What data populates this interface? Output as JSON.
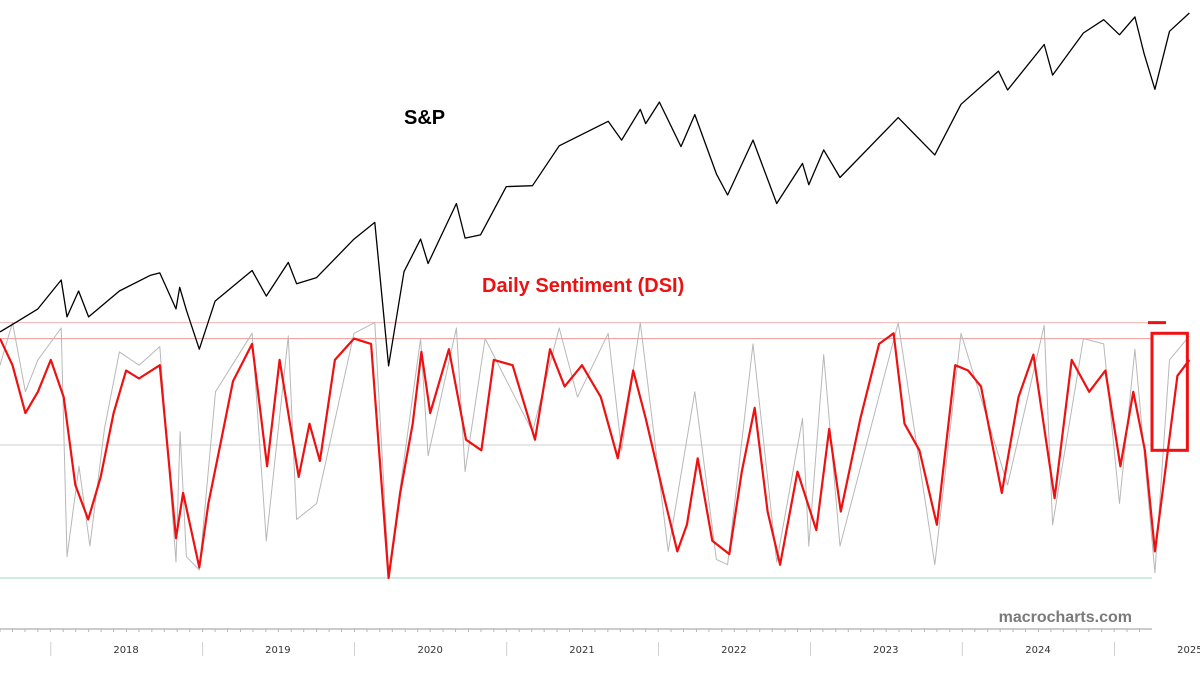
{
  "chart_data": {
    "type": "line",
    "annotations": {
      "sp_label": "S&P",
      "dsi_label": "Daily Sentiment (DSI)",
      "watermark": "macrocharts.com"
    },
    "x_axis": {
      "type": "date",
      "range": [
        "2017-09-01",
        "2025-04-01"
      ],
      "tick_labels": [
        "2018",
        "2019",
        "2020",
        "2021",
        "2022",
        "2023",
        "2024",
        "2025"
      ]
    },
    "series": [
      {
        "key": "sp",
        "color": "#000000",
        "scale": "log",
        "y_range": [
          2200,
          6300
        ],
        "points": [
          [
            "2017-09-01",
            2470
          ],
          [
            "2017-10-15",
            2550
          ],
          [
            "2017-12-01",
            2640
          ],
          [
            "2018-01-26",
            2870
          ],
          [
            "2018-02-09",
            2580
          ],
          [
            "2018-03-09",
            2780
          ],
          [
            "2018-04-02",
            2580
          ],
          [
            "2018-06-15",
            2780
          ],
          [
            "2018-08-29",
            2910
          ],
          [
            "2018-09-20",
            2930
          ],
          [
            "2018-10-29",
            2640
          ],
          [
            "2018-11-07",
            2810
          ],
          [
            "2018-11-23",
            2630
          ],
          [
            "2018-12-24",
            2350
          ],
          [
            "2019-01-31",
            2700
          ],
          [
            "2019-04-30",
            2950
          ],
          [
            "2019-06-03",
            2740
          ],
          [
            "2019-07-26",
            3020
          ],
          [
            "2019-08-15",
            2840
          ],
          [
            "2019-10-02",
            2890
          ],
          [
            "2019-12-31",
            3230
          ],
          [
            "2020-02-19",
            3390
          ],
          [
            "2020-03-23",
            2240
          ],
          [
            "2020-04-29",
            2940
          ],
          [
            "2020-06-08",
            3230
          ],
          [
            "2020-06-26",
            3010
          ],
          [
            "2020-09-02",
            3580
          ],
          [
            "2020-09-23",
            3240
          ],
          [
            "2020-10-30",
            3270
          ],
          [
            "2020-12-31",
            3760
          ],
          [
            "2021-03-04",
            3770
          ],
          [
            "2021-05-07",
            4230
          ],
          [
            "2021-09-02",
            4540
          ],
          [
            "2021-10-04",
            4300
          ],
          [
            "2021-11-18",
            4700
          ],
          [
            "2021-12-01",
            4510
          ],
          [
            "2022-01-03",
            4800
          ],
          [
            "2022-02-24",
            4220
          ],
          [
            "2022-03-29",
            4630
          ],
          [
            "2022-05-20",
            3900
          ],
          [
            "2022-06-16",
            3670
          ],
          [
            "2022-08-16",
            4300
          ],
          [
            "2022-10-12",
            3580
          ],
          [
            "2022-12-13",
            4020
          ],
          [
            "2022-12-28",
            3780
          ],
          [
            "2023-02-02",
            4180
          ],
          [
            "2023-03-13",
            3860
          ],
          [
            "2023-07-31",
            4590
          ],
          [
            "2023-10-27",
            4120
          ],
          [
            "2023-12-29",
            4770
          ],
          [
            "2024-03-28",
            5250
          ],
          [
            "2024-04-19",
            4970
          ],
          [
            "2024-07-16",
            5670
          ],
          [
            "2024-08-05",
            5190
          ],
          [
            "2024-10-18",
            5860
          ],
          [
            "2024-12-06",
            6090
          ],
          [
            "2025-01-13",
            5830
          ],
          [
            "2025-02-19",
            6140
          ],
          [
            "2025-03-13",
            5520
          ],
          [
            "2025-04-08",
            4980
          ],
          [
            "2025-05-13",
            5890
          ],
          [
            "2025-06-30",
            6210
          ]
        ]
      },
      {
        "key": "dsi_raw",
        "color": "#b8b8b8",
        "scale": "linear",
        "y_range": [
          0,
          100
        ],
        "points": [
          [
            "2017-09-01",
            80
          ],
          [
            "2017-10-01",
            96
          ],
          [
            "2017-11-01",
            70
          ],
          [
            "2017-12-01",
            82
          ],
          [
            "2018-01-26",
            94
          ],
          [
            "2018-02-09",
            8
          ],
          [
            "2018-03-10",
            42
          ],
          [
            "2018-04-05",
            12
          ],
          [
            "2018-05-10",
            56
          ],
          [
            "2018-06-15",
            85
          ],
          [
            "2018-08-01",
            80
          ],
          [
            "2018-09-20",
            87
          ],
          [
            "2018-10-29",
            6
          ],
          [
            "2018-11-08",
            55
          ],
          [
            "2018-11-23",
            8
          ],
          [
            "2018-12-24",
            3
          ],
          [
            "2019-02-01",
            70
          ],
          [
            "2019-04-30",
            92
          ],
          [
            "2019-06-03",
            14
          ],
          [
            "2019-07-26",
            91
          ],
          [
            "2019-08-15",
            22
          ],
          [
            "2019-10-02",
            28
          ],
          [
            "2019-12-31",
            92
          ],
          [
            "2020-02-19",
            96
          ],
          [
            "2020-03-23",
            2
          ],
          [
            "2020-06-08",
            90
          ],
          [
            "2020-06-26",
            46
          ],
          [
            "2020-09-02",
            94
          ],
          [
            "2020-09-23",
            40
          ],
          [
            "2020-11-10",
            90
          ],
          [
            "2021-03-04",
            55
          ],
          [
            "2021-05-07",
            94
          ],
          [
            "2021-06-20",
            68
          ],
          [
            "2021-09-02",
            92
          ],
          [
            "2021-10-04",
            48
          ],
          [
            "2021-11-18",
            96
          ],
          [
            "2022-01-24",
            10
          ],
          [
            "2022-03-29",
            70
          ],
          [
            "2022-05-20",
            7
          ],
          [
            "2022-06-16",
            5
          ],
          [
            "2022-08-16",
            88
          ],
          [
            "2022-10-12",
            6
          ],
          [
            "2022-12-13",
            60
          ],
          [
            "2022-12-28",
            12
          ],
          [
            "2023-02-02",
            84
          ],
          [
            "2023-03-13",
            12
          ],
          [
            "2023-07-31",
            96
          ],
          [
            "2023-10-27",
            5
          ],
          [
            "2023-12-29",
            92
          ],
          [
            "2024-04-19",
            35
          ],
          [
            "2024-07-16",
            95
          ],
          [
            "2024-08-05",
            20
          ],
          [
            "2024-10-18",
            90
          ],
          [
            "2024-12-06",
            88
          ],
          [
            "2025-01-13",
            28
          ],
          [
            "2025-02-19",
            86
          ],
          [
            "2025-04-08",
            2
          ],
          [
            "2025-05-13",
            82
          ],
          [
            "2025-06-30",
            91
          ]
        ]
      },
      {
        "key": "dsi_smoothed",
        "color": "#ee1111",
        "scale": "linear",
        "y_range": [
          0,
          100
        ],
        "points": [
          [
            "2017-09-01",
            90
          ],
          [
            "2017-10-01",
            80
          ],
          [
            "2017-11-01",
            62
          ],
          [
            "2017-12-01",
            70
          ],
          [
            "2018-01-01",
            82
          ],
          [
            "2018-02-01",
            68
          ],
          [
            "2018-03-01",
            35
          ],
          [
            "2018-04-01",
            22
          ],
          [
            "2018-05-01",
            38
          ],
          [
            "2018-06-01",
            62
          ],
          [
            "2018-07-01",
            78
          ],
          [
            "2018-08-01",
            75
          ],
          [
            "2018-09-20",
            80
          ],
          [
            "2018-10-29",
            15
          ],
          [
            "2018-11-15",
            32
          ],
          [
            "2018-12-24",
            4
          ],
          [
            "2019-01-15",
            28
          ],
          [
            "2019-02-15",
            52
          ],
          [
            "2019-03-15",
            74
          ],
          [
            "2019-04-30",
            88
          ],
          [
            "2019-06-05",
            42
          ],
          [
            "2019-07-05",
            82
          ],
          [
            "2019-08-20",
            38
          ],
          [
            "2019-09-15",
            58
          ],
          [
            "2019-10-10",
            44
          ],
          [
            "2019-11-15",
            82
          ],
          [
            "2019-12-31",
            90
          ],
          [
            "2020-02-10",
            88
          ],
          [
            "2020-03-23",
            0
          ],
          [
            "2020-04-20",
            32
          ],
          [
            "2020-05-20",
            58
          ],
          [
            "2020-06-10",
            85
          ],
          [
            "2020-07-01",
            62
          ],
          [
            "2020-08-15",
            86
          ],
          [
            "2020-09-25",
            52
          ],
          [
            "2020-11-01",
            48
          ],
          [
            "2020-12-01",
            82
          ],
          [
            "2021-01-15",
            80
          ],
          [
            "2021-03-10",
            52
          ],
          [
            "2021-04-15",
            86
          ],
          [
            "2021-05-20",
            72
          ],
          [
            "2021-07-01",
            80
          ],
          [
            "2021-08-15",
            68
          ],
          [
            "2021-09-25",
            45
          ],
          [
            "2021-11-01",
            78
          ],
          [
            "2021-12-01",
            60
          ],
          [
            "2022-01-15",
            30
          ],
          [
            "2022-02-15",
            10
          ],
          [
            "2022-03-10",
            20
          ],
          [
            "2022-04-05",
            45
          ],
          [
            "2022-05-10",
            14
          ],
          [
            "2022-06-20",
            9
          ],
          [
            "2022-07-20",
            40
          ],
          [
            "2022-08-20",
            64
          ],
          [
            "2022-09-20",
            25
          ],
          [
            "2022-10-20",
            5
          ],
          [
            "2022-12-01",
            40
          ],
          [
            "2023-01-15",
            18
          ],
          [
            "2023-02-15",
            56
          ],
          [
            "2023-03-15",
            25
          ],
          [
            "2023-05-01",
            60
          ],
          [
            "2023-06-15",
            88
          ],
          [
            "2023-07-20",
            92
          ],
          [
            "2023-08-15",
            58
          ],
          [
            "2023-09-20",
            48
          ],
          [
            "2023-11-01",
            20
          ],
          [
            "2023-12-15",
            80
          ],
          [
            "2024-01-15",
            78
          ],
          [
            "2024-02-15",
            72
          ],
          [
            "2024-04-05",
            32
          ],
          [
            "2024-05-15",
            68
          ],
          [
            "2024-06-20",
            84
          ],
          [
            "2024-08-10",
            30
          ],
          [
            "2024-09-20",
            82
          ],
          [
            "2024-11-01",
            70
          ],
          [
            "2024-12-10",
            78
          ],
          [
            "2025-01-15",
            42
          ],
          [
            "2025-02-15",
            70
          ],
          [
            "2025-03-15",
            48
          ],
          [
            "2025-04-08",
            10
          ],
          [
            "2025-05-01",
            38
          ],
          [
            "2025-06-01",
            76
          ],
          [
            "2025-06-30",
            82
          ]
        ]
      }
    ],
    "reference_lines": [
      {
        "key": "dsi_extreme_high",
        "value": 96,
        "color": "#f3b3b3"
      },
      {
        "key": "dsi_high",
        "value": 90,
        "color": "#ef9a9a"
      },
      {
        "key": "dsi_mid",
        "value": 50,
        "color": "#cfcfcf"
      },
      {
        "key": "dsi_low",
        "value": 0,
        "color": "#9fd8cf"
      }
    ],
    "highlight": {
      "marker_line_value": 96,
      "box_range": [
        "2025-04-01",
        "2025-06-25"
      ],
      "box_y": [
        48,
        92
      ],
      "color": "#ee1111"
    },
    "grid": false,
    "legend": "none"
  }
}
